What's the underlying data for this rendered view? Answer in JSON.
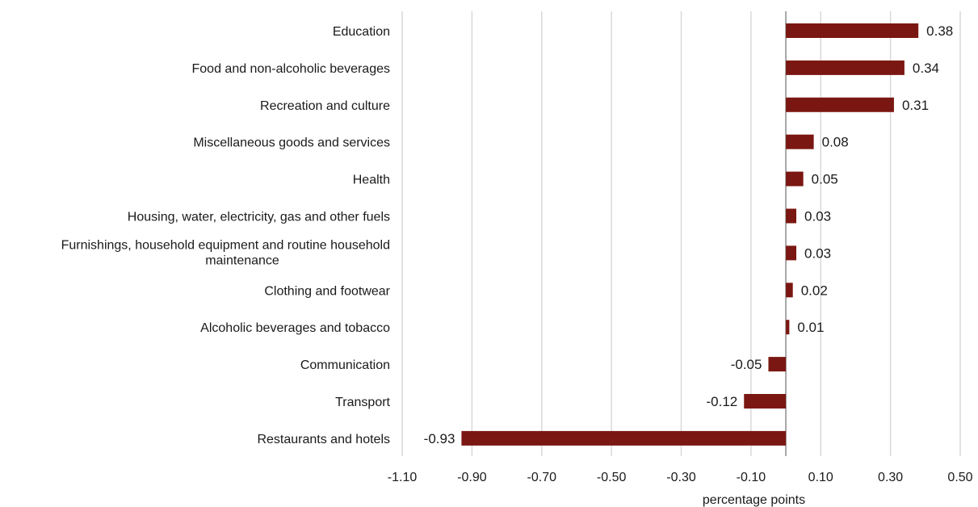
{
  "chart_data": {
    "type": "bar",
    "orientation": "horizontal",
    "categories": [
      "Education",
      "Food and non-alcoholic beverages",
      "Recreation and culture",
      "Miscellaneous goods and services",
      "Health",
      "Housing, water, electricity, gas and other fuels",
      "Furnishings, household equipment and routine household maintenance",
      "Clothing and footwear",
      "Alcoholic beverages and tobacco",
      "Communication",
      "Transport",
      "Restaurants and hotels"
    ],
    "values": [
      0.38,
      0.34,
      0.31,
      0.08,
      0.05,
      0.03,
      0.03,
      0.02,
      0.01,
      -0.05,
      -0.12,
      -0.93
    ],
    "data_labels": [
      "0.38",
      "0.34",
      "0.31",
      "0.08",
      "0.05",
      "0.03",
      "0.03",
      "0.02",
      "0.01",
      "-0.05",
      "-0.12",
      "-0.93"
    ],
    "xlabel": "percentage points",
    "xlim": [
      -1.1,
      0.5
    ],
    "x_ticks": [
      -1.1,
      -0.9,
      -0.7,
      -0.5,
      -0.3,
      -0.1,
      0.1,
      0.3,
      0.5
    ],
    "x_tick_labels": [
      "-1.10",
      "-0.90",
      "-0.70",
      "-0.50",
      "-0.30",
      "-0.10",
      "0.10",
      "0.30",
      "0.50"
    ],
    "grid": true,
    "legend": false,
    "bar_color": "#7b1712"
  }
}
